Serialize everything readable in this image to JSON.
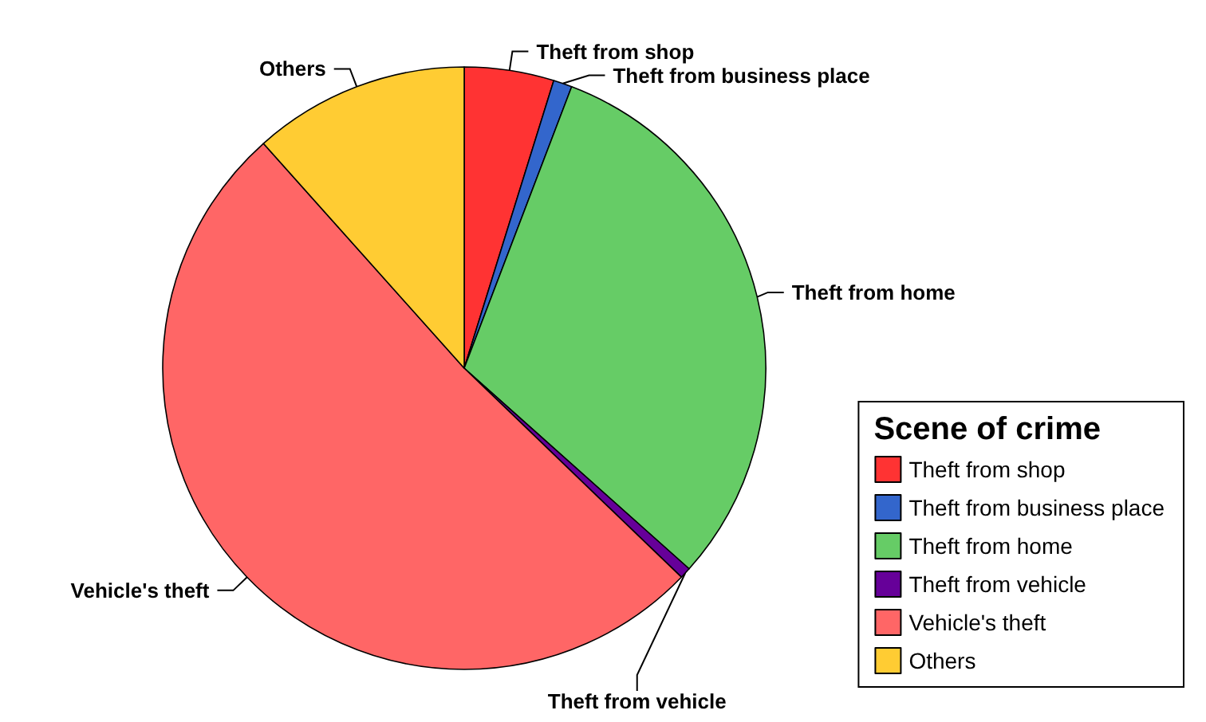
{
  "chart_data": {
    "type": "pie",
    "legend_title": "Scene of crime",
    "categories": [
      "Theft from shop",
      "Theft from business place",
      "Theft from home",
      "Theft from vehicle",
      "Vehicle's theft",
      "Others"
    ],
    "values": [
      4.8,
      1.0,
      30.8,
      0.6,
      51.2,
      11.6
    ],
    "colors": [
      "#ff3333",
      "#3366cc",
      "#66cc66",
      "#660099",
      "#ff6666",
      "#ffcc33"
    ],
    "legend": "bottom right"
  }
}
